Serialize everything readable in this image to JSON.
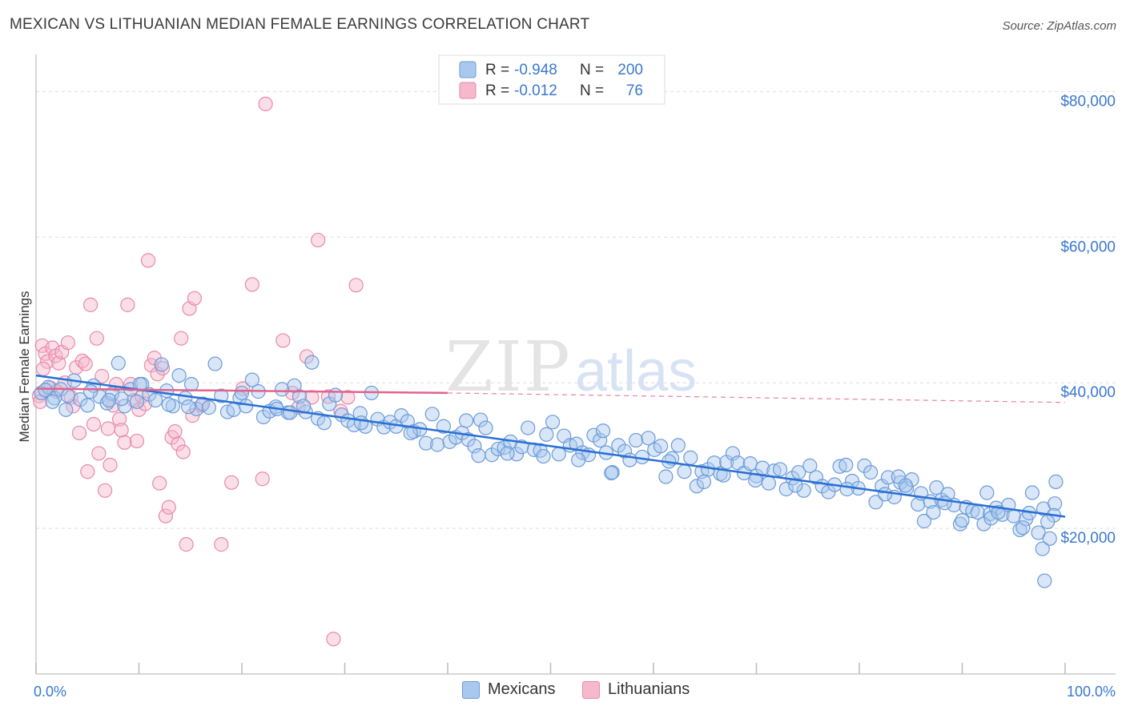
{
  "title": "MEXICAN VS LITHUANIAN MEDIAN FEMALE EARNINGS CORRELATION CHART",
  "source": "Source: ZipAtlas.com",
  "watermark": {
    "zip": "ZIP",
    "atlas": "atlas"
  },
  "colors": {
    "blue_fill": "#a9c8ee",
    "blue_stroke": "#6b9bd8",
    "blue_line": "#2a6fd4",
    "pink_fill": "#f6b8cb",
    "pink_stroke": "#e889a8",
    "pink_line": "#e2628c",
    "axis_label": "#3a78d0",
    "grid": "#dddddd"
  },
  "legend_top": {
    "rows": [
      {
        "r_label": "R =",
        "r_value": "-0.948",
        "n_label": "N =",
        "n_value": "200"
      },
      {
        "r_label": "R =",
        "r_value": "-0.012",
        "n_label": "N =",
        "n_value": "76"
      }
    ]
  },
  "legend_bottom": {
    "items": [
      "Mexicans",
      "Lithuanians"
    ]
  },
  "chart_data": {
    "type": "scatter",
    "xlabel": "",
    "ylabel": "Median Female Earnings",
    "xlim": [
      0,
      100
    ],
    "ylim": [
      0,
      84000
    ],
    "x_tick_labels": [
      "0.0%",
      "100.0%"
    ],
    "y_ticks": [
      20000,
      40000,
      60000,
      80000
    ],
    "y_tick_labels": [
      "$20,000",
      "$40,000",
      "$60,000",
      "$80,000"
    ],
    "grid": true,
    "legend_placement": "top-center",
    "series": [
      {
        "name": "Mexicans",
        "r": -0.948,
        "n": 200,
        "trend": {
          "x": [
            0,
            100
          ],
          "y": [
            41000,
            21600
          ]
        },
        "points": [
          [
            0.5,
            38600
          ],
          [
            1.2,
            39400
          ],
          [
            1.8,
            37900
          ],
          [
            2.4,
            39100
          ],
          [
            3.1,
            38200
          ],
          [
            3.7,
            40300
          ],
          [
            4.3,
            37700
          ],
          [
            5.0,
            36900
          ],
          [
            5.6,
            39600
          ],
          [
            6.2,
            38100
          ],
          [
            6.9,
            37200
          ],
          [
            7.4,
            38500
          ],
          [
            8.0,
            42700
          ],
          [
            8.6,
            36800
          ],
          [
            9.2,
            39100
          ],
          [
            9.8,
            37400
          ],
          [
            10.3,
            39800
          ],
          [
            11.0,
            38400
          ],
          [
            11.6,
            37600
          ],
          [
            12.2,
            42500
          ],
          [
            12.7,
            38900
          ],
          [
            13.3,
            36800
          ],
          [
            13.9,
            41000
          ],
          [
            14.5,
            37900
          ],
          [
            15.1,
            39800
          ],
          [
            15.6,
            36400
          ],
          [
            16.2,
            37100
          ],
          [
            16.8,
            36600
          ],
          [
            17.4,
            42600
          ],
          [
            18.0,
            38200
          ],
          [
            18.6,
            36000
          ],
          [
            19.2,
            36300
          ],
          [
            19.8,
            37900
          ],
          [
            20.4,
            36800
          ],
          [
            21.0,
            40400
          ],
          [
            21.6,
            38800
          ],
          [
            22.1,
            35300
          ],
          [
            22.7,
            36100
          ],
          [
            23.3,
            36700
          ],
          [
            23.9,
            39100
          ],
          [
            24.5,
            35900
          ],
          [
            25.1,
            39600
          ],
          [
            25.6,
            38100
          ],
          [
            26.2,
            36000
          ],
          [
            26.8,
            42800
          ],
          [
            27.4,
            35100
          ],
          [
            28.0,
            34500
          ],
          [
            28.5,
            37100
          ],
          [
            29.1,
            38300
          ],
          [
            29.7,
            35600
          ],
          [
            30.3,
            34800
          ],
          [
            30.9,
            34200
          ],
          [
            31.5,
            35800
          ],
          [
            32.0,
            34000
          ],
          [
            32.6,
            38600
          ],
          [
            33.2,
            35000
          ],
          [
            33.8,
            33900
          ],
          [
            34.4,
            34600
          ],
          [
            35.0,
            34000
          ],
          [
            35.5,
            35500
          ],
          [
            36.1,
            34700
          ],
          [
            36.7,
            33300
          ],
          [
            37.3,
            33600
          ],
          [
            37.9,
            31700
          ],
          [
            38.5,
            35700
          ],
          [
            39.0,
            31500
          ],
          [
            39.6,
            34000
          ],
          [
            40.2,
            31900
          ],
          [
            40.8,
            32500
          ],
          [
            41.4,
            33100
          ],
          [
            42.0,
            32200
          ],
          [
            42.6,
            31300
          ],
          [
            43.2,
            34900
          ],
          [
            43.7,
            33800
          ],
          [
            44.3,
            30100
          ],
          [
            44.9,
            30900
          ],
          [
            45.5,
            31100
          ],
          [
            46.1,
            31900
          ],
          [
            46.7,
            30200
          ],
          [
            47.2,
            31200
          ],
          [
            47.8,
            33800
          ],
          [
            48.4,
            30800
          ],
          [
            49.0,
            30700
          ],
          [
            49.6,
            32900
          ],
          [
            50.2,
            34600
          ],
          [
            50.8,
            30200
          ],
          [
            51.3,
            32700
          ],
          [
            51.9,
            31400
          ],
          [
            52.5,
            31600
          ],
          [
            53.1,
            30400
          ],
          [
            53.7,
            30100
          ],
          [
            54.2,
            32800
          ],
          [
            54.8,
            32100
          ],
          [
            55.4,
            30400
          ],
          [
            56.0,
            27700
          ],
          [
            56.6,
            31400
          ],
          [
            57.2,
            30600
          ],
          [
            57.7,
            29400
          ],
          [
            58.3,
            32100
          ],
          [
            58.9,
            29800
          ],
          [
            59.5,
            32400
          ],
          [
            60.1,
            30800
          ],
          [
            60.7,
            31300
          ],
          [
            61.2,
            27100
          ],
          [
            61.8,
            29600
          ],
          [
            62.4,
            31400
          ],
          [
            63.0,
            27800
          ],
          [
            63.6,
            29700
          ],
          [
            64.2,
            25800
          ],
          [
            64.7,
            27800
          ],
          [
            65.3,
            28100
          ],
          [
            65.9,
            29000
          ],
          [
            66.5,
            27500
          ],
          [
            67.1,
            29100
          ],
          [
            67.7,
            30300
          ],
          [
            68.2,
            29000
          ],
          [
            68.8,
            27600
          ],
          [
            69.4,
            28900
          ],
          [
            70.0,
            27200
          ],
          [
            70.6,
            28300
          ],
          [
            71.2,
            26200
          ],
          [
            71.7,
            27900
          ],
          [
            72.3,
            28100
          ],
          [
            72.9,
            25400
          ],
          [
            73.5,
            26900
          ],
          [
            74.1,
            27700
          ],
          [
            74.6,
            25200
          ],
          [
            75.2,
            28600
          ],
          [
            75.8,
            27000
          ],
          [
            76.4,
            25800
          ],
          [
            77.0,
            25000
          ],
          [
            77.6,
            26000
          ],
          [
            78.1,
            28500
          ],
          [
            78.7,
            28700
          ],
          [
            79.3,
            26500
          ],
          [
            79.9,
            25500
          ],
          [
            80.5,
            28600
          ],
          [
            81.1,
            27700
          ],
          [
            81.6,
            23600
          ],
          [
            82.2,
            25800
          ],
          [
            82.8,
            27000
          ],
          [
            83.4,
            24300
          ],
          [
            84.0,
            26300
          ],
          [
            84.6,
            25500
          ],
          [
            85.1,
            26700
          ],
          [
            85.7,
            23300
          ],
          [
            86.3,
            21000
          ],
          [
            86.9,
            23700
          ],
          [
            87.5,
            25600
          ],
          [
            88.0,
            23900
          ],
          [
            88.6,
            24700
          ],
          [
            89.2,
            23200
          ],
          [
            89.8,
            20600
          ],
          [
            90.4,
            22900
          ],
          [
            91.0,
            22400
          ],
          [
            91.5,
            22200
          ],
          [
            92.1,
            20600
          ],
          [
            92.7,
            22000
          ],
          [
            93.3,
            22800
          ],
          [
            93.9,
            21900
          ],
          [
            94.5,
            23200
          ],
          [
            95.0,
            21700
          ],
          [
            95.6,
            19800
          ],
          [
            96.2,
            21300
          ],
          [
            96.8,
            24900
          ],
          [
            97.4,
            19400
          ],
          [
            97.9,
            22700
          ],
          [
            98.5,
            18600
          ],
          [
            99.0,
            23400
          ],
          [
            96.5,
            22100
          ],
          [
            98.9,
            21800
          ],
          [
            97.8,
            17200
          ],
          [
            98.0,
            12800
          ],
          [
            99.1,
            26400
          ],
          [
            86.0,
            24800
          ],
          [
            92.8,
            21400
          ],
          [
            92.4,
            24900
          ],
          [
            83.8,
            27100
          ],
          [
            88.3,
            23500
          ],
          [
            66.8,
            27300
          ],
          [
            41.8,
            34800
          ],
          [
            43.0,
            30000
          ],
          [
            55.1,
            33400
          ],
          [
            55.9,
            27600
          ],
          [
            24.7,
            35900
          ],
          [
            23.4,
            36400
          ],
          [
            14.8,
            36700
          ],
          [
            10.1,
            39800
          ],
          [
            7.1,
            37600
          ],
          [
            5.3,
            38800
          ],
          [
            1.6,
            37400
          ],
          [
            0.9,
            39000
          ],
          [
            2.9,
            36300
          ],
          [
            8.3,
            37800
          ],
          [
            12.9,
            37000
          ],
          [
            20.0,
            38600
          ],
          [
            26.0,
            36800
          ],
          [
            31.6,
            34500
          ],
          [
            36.4,
            33100
          ],
          [
            45.8,
            30300
          ],
          [
            49.3,
            29900
          ],
          [
            52.7,
            29400
          ],
          [
            61.5,
            29200
          ],
          [
            64.9,
            26400
          ],
          [
            69.9,
            26600
          ],
          [
            73.8,
            25900
          ],
          [
            78.8,
            25400
          ],
          [
            82.5,
            24700
          ],
          [
            84.5,
            25900
          ],
          [
            87.2,
            22200
          ],
          [
            90.0,
            21100
          ],
          [
            93.5,
            22200
          ],
          [
            95.9,
            20100
          ],
          [
            98.3,
            20900
          ]
        ]
      },
      {
        "name": "Lithuanians",
        "r": -0.012,
        "n": 76,
        "trend": {
          "x": [
            0,
            40,
            100
          ],
          "y": [
            39200,
            38600,
            37300
          ]
        },
        "points": [
          [
            0.3,
            38200
          ],
          [
            0.6,
            45100
          ],
          [
            0.9,
            44000
          ],
          [
            1.1,
            42900
          ],
          [
            1.4,
            39300
          ],
          [
            1.6,
            44800
          ],
          [
            1.9,
            43700
          ],
          [
            2.2,
            42700
          ],
          [
            2.5,
            44200
          ],
          [
            2.8,
            40000
          ],
          [
            3.1,
            45500
          ],
          [
            3.4,
            38000
          ],
          [
            3.6,
            36800
          ],
          [
            3.9,
            42100
          ],
          [
            4.2,
            33100
          ],
          [
            4.5,
            43000
          ],
          [
            4.8,
            42600
          ],
          [
            5.0,
            27800
          ],
          [
            5.3,
            50700
          ],
          [
            5.6,
            34300
          ],
          [
            5.9,
            46100
          ],
          [
            6.1,
            30300
          ],
          [
            6.4,
            40900
          ],
          [
            6.7,
            25200
          ],
          [
            7.0,
            33700
          ],
          [
            7.2,
            28700
          ],
          [
            7.5,
            36900
          ],
          [
            7.8,
            39800
          ],
          [
            8.1,
            35000
          ],
          [
            8.3,
            33500
          ],
          [
            8.6,
            31800
          ],
          [
            8.9,
            50700
          ],
          [
            9.2,
            39800
          ],
          [
            9.5,
            37600
          ],
          [
            9.8,
            32000
          ],
          [
            10.0,
            36300
          ],
          [
            10.3,
            38100
          ],
          [
            10.6,
            37100
          ],
          [
            10.9,
            56800
          ],
          [
            11.2,
            42400
          ],
          [
            11.5,
            43400
          ],
          [
            11.8,
            41200
          ],
          [
            12.0,
            26200
          ],
          [
            12.3,
            42000
          ],
          [
            12.6,
            21700
          ],
          [
            12.9,
            22900
          ],
          [
            13.2,
            32500
          ],
          [
            13.5,
            33300
          ],
          [
            13.8,
            31600
          ],
          [
            14.1,
            46100
          ],
          [
            14.3,
            30500
          ],
          [
            14.6,
            17800
          ],
          [
            14.9,
            50200
          ],
          [
            15.2,
            35500
          ],
          [
            15.4,
            51600
          ],
          [
            18.0,
            17800
          ],
          [
            19.0,
            26300
          ],
          [
            20.1,
            39200
          ],
          [
            21.0,
            53500
          ],
          [
            22.0,
            26800
          ],
          [
            22.3,
            78300
          ],
          [
            24.0,
            45800
          ],
          [
            24.9,
            38600
          ],
          [
            25.5,
            36600
          ],
          [
            26.3,
            43600
          ],
          [
            26.8,
            38000
          ],
          [
            27.4,
            59600
          ],
          [
            28.4,
            38100
          ],
          [
            28.9,
            4800
          ],
          [
            29.6,
            36100
          ],
          [
            30.3,
            38000
          ],
          [
            31.1,
            53400
          ],
          [
            0.4,
            37400
          ],
          [
            0.7,
            41900
          ],
          [
            2.0,
            38800
          ],
          [
            16.1,
            36900
          ]
        ]
      }
    ]
  }
}
